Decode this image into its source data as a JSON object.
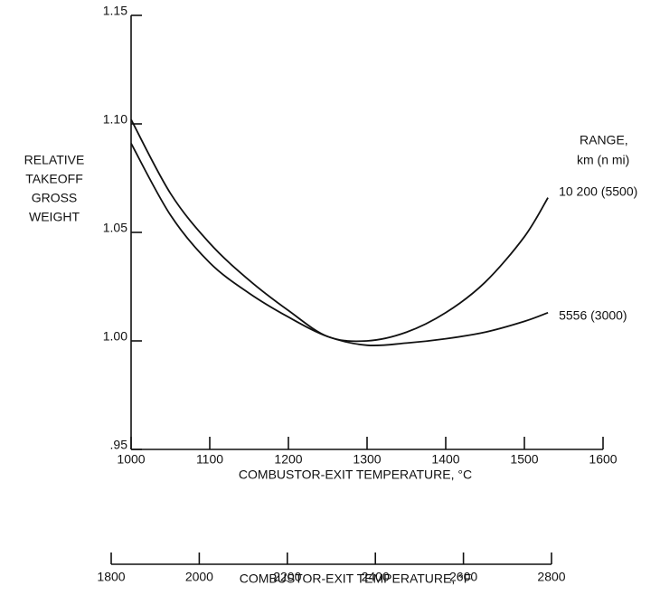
{
  "chart_data": {
    "type": "line",
    "ylabel": [
      "RELATIVE",
      "TAKEOFF",
      "GROSS",
      "WEIGHT"
    ],
    "xlabel": "COMBUSTOR-EXIT TEMPERATURE, °C",
    "x2label": "COMBUSTOR-EXIT TEMPERATURE, °F",
    "legend_title": [
      "RANGE,",
      "km  (n mi)"
    ],
    "x": [
      1000,
      1050,
      1100,
      1150,
      1200,
      1250,
      1300,
      1350,
      1400,
      1450,
      1500,
      1530
    ],
    "series": [
      {
        "name": "10 200 (5500)",
        "color": "#111111",
        "values": [
          1.102,
          1.068,
          1.045,
          1.028,
          1.014,
          1.002,
          1.0,
          1.004,
          1.013,
          1.027,
          1.048,
          1.066
        ]
      },
      {
        "name": "5556 (3000)",
        "color": "#111111",
        "values": [
          1.091,
          1.058,
          1.036,
          1.022,
          1.011,
          1.002,
          0.998,
          0.999,
          1.001,
          1.004,
          1.009,
          1.013
        ]
      }
    ],
    "xlim": [
      1000,
      1600
    ],
    "xticks": [
      1000,
      1100,
      1200,
      1300,
      1400,
      1500,
      1600
    ],
    "ylim": [
      0.95,
      1.15
    ],
    "yticks": [
      {
        "value": 0.95,
        "label": ".95"
      },
      {
        "value": 1.0,
        "label": "1.00"
      },
      1.05,
      {
        "value": 1.1,
        "label": "1.10"
      },
      1.15
    ],
    "x2lim": [
      1800,
      2800
    ],
    "x2ticks": [
      1800,
      2000,
      2200,
      2400,
      2600,
      2800
    ]
  }
}
